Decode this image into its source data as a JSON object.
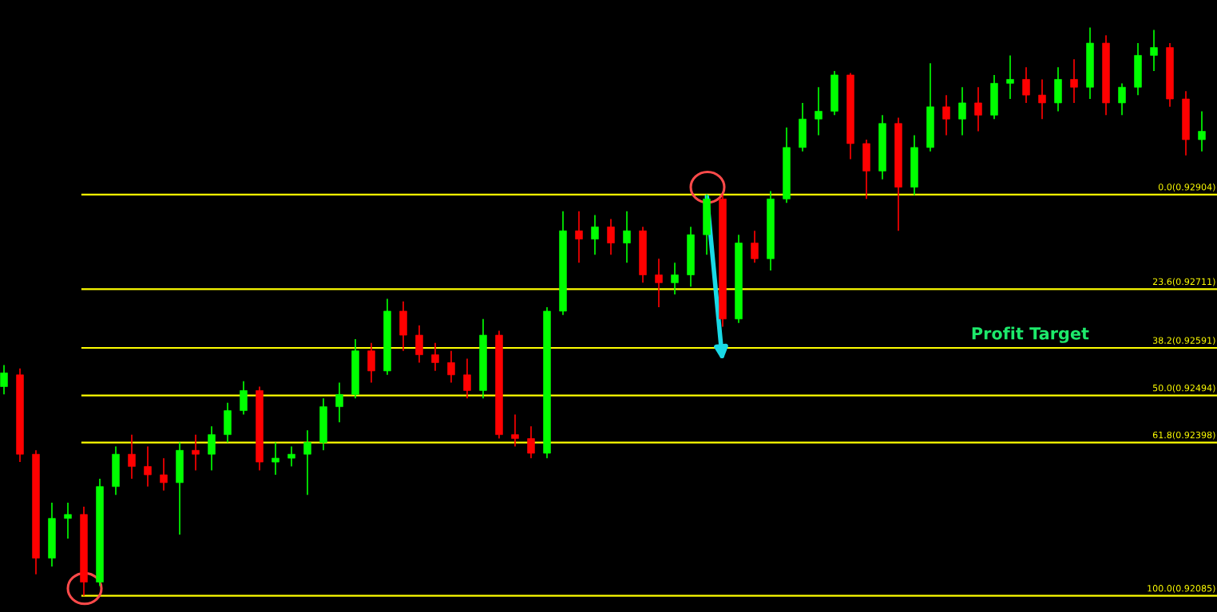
{
  "chart_data": {
    "type": "candlestick",
    "grid": false,
    "ylim": [
      0.92052,
      0.93301
    ],
    "categories": [
      null,
      null,
      null,
      null,
      null,
      null,
      null,
      null,
      null,
      null,
      null,
      null,
      null,
      null,
      null,
      null,
      null,
      null,
      null,
      null,
      null,
      null,
      null,
      null,
      null,
      null,
      null,
      null,
      null,
      null,
      null,
      null,
      null,
      null,
      null,
      null,
      null,
      null,
      null,
      null,
      null,
      null,
      null,
      null,
      null,
      null,
      null,
      null,
      null,
      null,
      null,
      null,
      null,
      null,
      null,
      null,
      null,
      null,
      null,
      null,
      null,
      null,
      null,
      null,
      null,
      null,
      null,
      null,
      null,
      null,
      null,
      null,
      null,
      null,
      null,
      null
    ],
    "ohlc": [
      [
        0.92512,
        0.92556,
        0.92496,
        0.9254
      ],
      [
        0.92536,
        0.92549,
        0.92358,
        0.92374
      ],
      [
        0.92374,
        0.92382,
        0.92129,
        0.92162
      ],
      [
        0.92162,
        0.92275,
        0.92145,
        0.92243
      ],
      [
        0.92243,
        0.92275,
        0.92202,
        0.92251
      ],
      [
        0.92251,
        0.92267,
        0.92085,
        0.92113
      ],
      [
        0.92113,
        0.92324,
        0.92105,
        0.92308
      ],
      [
        0.92308,
        0.9239,
        0.92291,
        0.92374
      ],
      [
        0.92374,
        0.92414,
        0.92324,
        0.92349
      ],
      [
        0.92349,
        0.9239,
        0.92308,
        0.92332
      ],
      [
        0.92332,
        0.92366,
        0.923,
        0.92316
      ],
      [
        0.92316,
        0.92398,
        0.9221,
        0.92382
      ],
      [
        0.92382,
        0.92414,
        0.92341,
        0.92374
      ],
      [
        0.92374,
        0.92431,
        0.92341,
        0.92414
      ],
      [
        0.92414,
        0.92479,
        0.92398,
        0.92463
      ],
      [
        0.92463,
        0.92523,
        0.92455,
        0.92504
      ],
      [
        0.92504,
        0.92512,
        0.92341,
        0.92358
      ],
      [
        0.92358,
        0.92398,
        0.92332,
        0.92366
      ],
      [
        0.92366,
        0.9239,
        0.92349,
        0.92374
      ],
      [
        0.92374,
        0.92423,
        0.92291,
        0.92398
      ],
      [
        0.92398,
        0.92488,
        0.92382,
        0.92471
      ],
      [
        0.92471,
        0.9252,
        0.92439,
        0.92496
      ],
      [
        0.92496,
        0.92609,
        0.92488,
        0.92585
      ],
      [
        0.92585,
        0.92601,
        0.9252,
        0.92544
      ],
      [
        0.92544,
        0.92691,
        0.92536,
        0.92666
      ],
      [
        0.92666,
        0.92686,
        0.92585,
        0.92617
      ],
      [
        0.92617,
        0.92637,
        0.92561,
        0.92577
      ],
      [
        0.92577,
        0.92601,
        0.92544,
        0.92561
      ],
      [
        0.92561,
        0.92585,
        0.9252,
        0.92536
      ],
      [
        0.92536,
        0.92569,
        0.92488,
        0.92504
      ],
      [
        0.92504,
        0.9265,
        0.92488,
        0.92617
      ],
      [
        0.92617,
        0.92626,
        0.92406,
        0.92414
      ],
      [
        0.92414,
        0.92455,
        0.9239,
        0.92406
      ],
      [
        0.92406,
        0.92431,
        0.92366,
        0.92376
      ],
      [
        0.92376,
        0.92674,
        0.92366,
        0.92666
      ],
      [
        0.92666,
        0.9287,
        0.92658,
        0.9283
      ],
      [
        0.9283,
        0.9287,
        0.92765,
        0.92813
      ],
      [
        0.92813,
        0.92862,
        0.92781,
        0.92838
      ],
      [
        0.92838,
        0.92854,
        0.92781,
        0.92805
      ],
      [
        0.92805,
        0.9287,
        0.92765,
        0.9283
      ],
      [
        0.9283,
        0.92838,
        0.92724,
        0.9274
      ],
      [
        0.9274,
        0.92773,
        0.92674,
        0.92724
      ],
      [
        0.92724,
        0.92765,
        0.927,
        0.9274
      ],
      [
        0.9274,
        0.92838,
        0.92716,
        0.92822
      ],
      [
        0.92822,
        0.92904,
        0.92781,
        0.92895
      ],
      [
        0.92895,
        0.92903,
        0.92634,
        0.9265
      ],
      [
        0.9265,
        0.92822,
        0.92642,
        0.92805
      ],
      [
        0.92805,
        0.9283,
        0.92765,
        0.92773
      ],
      [
        0.92773,
        0.92911,
        0.92749,
        0.92895
      ],
      [
        0.92895,
        0.93041,
        0.92887,
        0.93
      ],
      [
        0.93,
        0.93091,
        0.92992,
        0.93058
      ],
      [
        0.93058,
        0.93123,
        0.93025,
        0.93074
      ],
      [
        0.93074,
        0.93156,
        0.93066,
        0.93148
      ],
      [
        0.93148,
        0.93152,
        0.92976,
        0.93008
      ],
      [
        0.93008,
        0.93016,
        0.92895,
        0.92952
      ],
      [
        0.92952,
        0.93066,
        0.92935,
        0.93049
      ],
      [
        0.93049,
        0.93061,
        0.9283,
        0.92919
      ],
      [
        0.92919,
        0.93025,
        0.92903,
        0.93
      ],
      [
        0.93,
        0.93172,
        0.92992,
        0.93083
      ],
      [
        0.93083,
        0.93107,
        0.93025,
        0.93058
      ],
      [
        0.93058,
        0.93123,
        0.93025,
        0.93091
      ],
      [
        0.93091,
        0.93123,
        0.93033,
        0.93066
      ],
      [
        0.93066,
        0.93148,
        0.93058,
        0.93131
      ],
      [
        0.93131,
        0.93188,
        0.93099,
        0.93139
      ],
      [
        0.93139,
        0.93164,
        0.93091,
        0.93107
      ],
      [
        0.93107,
        0.93139,
        0.93058,
        0.93091
      ],
      [
        0.93091,
        0.93164,
        0.93074,
        0.93139
      ],
      [
        0.93139,
        0.9318,
        0.93091,
        0.93123
      ],
      [
        0.93123,
        0.93245,
        0.93099,
        0.93213
      ],
      [
        0.93213,
        0.93229,
        0.93066,
        0.93091
      ],
      [
        0.93091,
        0.93131,
        0.93066,
        0.93123
      ],
      [
        0.93123,
        0.93213,
        0.93107,
        0.93188
      ],
      [
        0.93188,
        0.9324,
        0.93156,
        0.93204
      ],
      [
        0.93204,
        0.93213,
        0.93083,
        0.93099
      ],
      [
        0.93099,
        0.93115,
        0.92984,
        0.93016
      ],
      [
        0.93016,
        0.93074,
        0.92992,
        0.93033
      ]
    ],
    "colors": [
      "#00ff00",
      "#ff0000",
      "#ff0000",
      "#00ff00",
      "#00ff00",
      "#ff0000",
      "#00ff00",
      "#00ff00",
      "#ff0000",
      "#ff0000",
      "#ff0000",
      "#00ff00",
      "#ff0000",
      "#00ff00",
      "#00ff00",
      "#00ff00",
      "#ff0000",
      "#00ff00",
      "#00ff00",
      "#00ff00",
      "#00ff00",
      "#00ff00",
      "#00ff00",
      "#ff0000",
      "#00ff00",
      "#ff0000",
      "#ff0000",
      "#ff0000",
      "#ff0000",
      "#ff0000",
      "#00ff00",
      "#ff0000",
      "#ff0000",
      "#ff0000",
      "#00ff00",
      "#00ff00",
      "#ff0000",
      "#00ff00",
      "#ff0000",
      "#00ff00",
      "#ff0000",
      "#ff0000",
      "#00ff00",
      "#00ff00",
      "#00ff00",
      "#ff0000",
      "#00ff00",
      "#ff0000",
      "#00ff00",
      "#00ff00",
      "#00ff00",
      "#00ff00",
      "#00ff00",
      "#ff0000",
      "#ff0000",
      "#00ff00",
      "#ff0000",
      "#00ff00",
      "#00ff00",
      "#ff0000",
      "#00ff00",
      "#ff0000",
      "#00ff00",
      "#00ff00",
      "#ff0000",
      "#ff0000",
      "#00ff00",
      "#ff0000",
      "#00ff00",
      "#ff0000",
      "#00ff00",
      "#00ff00",
      "#00ff00",
      "#ff0000",
      "#ff0000",
      "#00ff00"
    ],
    "ref_lines": [
      {
        "axis": "y",
        "value": 0.92904,
        "label": "0.0(0.92904)",
        "color": "#ffff00"
      },
      {
        "axis": "y",
        "value": 0.92711,
        "label": "23.6(0.92711)",
        "color": "#ffff00"
      },
      {
        "axis": "y",
        "value": 0.92591,
        "label": "38.2(0.92591)",
        "color": "#ffff00"
      },
      {
        "axis": "y",
        "value": 0.92494,
        "label": "50.0(0.92494)",
        "color": "#ffff00"
      },
      {
        "axis": "y",
        "value": 0.92398,
        "label": "61.8(0.92398)",
        "color": "#ffff00"
      },
      {
        "axis": "y",
        "value": 0.92085,
        "label": "100.0(0.92085)",
        "color": "#ffff00"
      }
    ],
    "annotations": [
      {
        "text": "Profit Target",
        "y": 0.92591
      }
    ]
  }
}
